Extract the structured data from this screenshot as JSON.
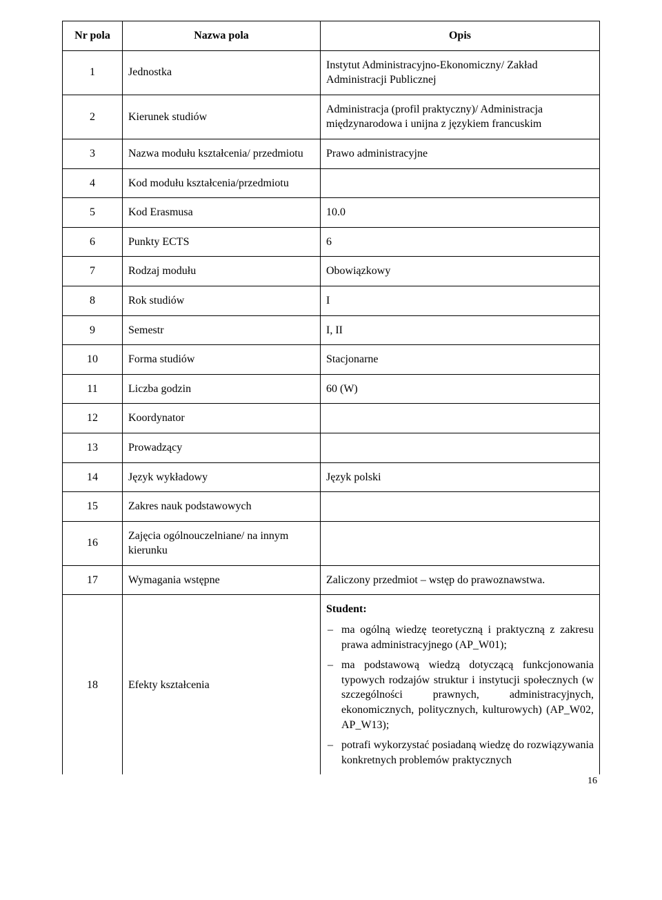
{
  "header": {
    "col1": "Nr pola",
    "col2": "Nazwa pola",
    "col3": "Opis"
  },
  "rows": {
    "r1": {
      "n": "1",
      "label": "Jednostka",
      "value": "Instytut Administracyjno-Ekonomiczny/ Zakład Administracji Publicznej"
    },
    "r2": {
      "n": "2",
      "label": "Kierunek studiów",
      "value": "Administracja (profil praktyczny)/ Administracja międzynarodowa i unijna z językiem francuskim"
    },
    "r3": {
      "n": "3",
      "label": "Nazwa modułu kształcenia/ przedmiotu",
      "value": "Prawo administracyjne"
    },
    "r4": {
      "n": "4",
      "label": "Kod modułu kształcenia/przedmiotu",
      "value": ""
    },
    "r5": {
      "n": "5",
      "label": "Kod Erasmusa",
      "value": "10.0"
    },
    "r6": {
      "n": "6",
      "label": "Punkty ECTS",
      "value": "6"
    },
    "r7": {
      "n": "7",
      "label": "Rodzaj modułu",
      "value": "Obowiązkowy"
    },
    "r8": {
      "n": "8",
      "label": "Rok studiów",
      "value": "I"
    },
    "r9": {
      "n": "9",
      "label": "Semestr",
      "value": "I, II"
    },
    "r10": {
      "n": "10",
      "label": "Forma studiów",
      "value": "Stacjonarne"
    },
    "r11": {
      "n": "11",
      "label": "Liczba godzin",
      "value": "60 (W)"
    },
    "r12": {
      "n": "12",
      "label": "Koordynator",
      "value": ""
    },
    "r13": {
      "n": "13",
      "label": "Prowadzący",
      "value": ""
    },
    "r14": {
      "n": "14",
      "label": "Język wykładowy",
      "value": "Język polski"
    },
    "r15": {
      "n": "15",
      "label": "Zakres nauk podstawowych",
      "value": ""
    },
    "r16": {
      "n": "16",
      "label": "Zajęcia ogólnouczelniane/ na innym kierunku",
      "value": ""
    },
    "r17": {
      "n": "17",
      "label": "Wymagania wstępne",
      "value": "Zaliczony przedmiot – wstęp do prawoznawstwa."
    },
    "r18": {
      "n": "18",
      "label": "Efekty kształcenia",
      "student": "Student:",
      "items": [
        "ma ogólną wiedzę teoretyczną i praktyczną z zakresu prawa administracyjnego (AP_W01);",
        "ma podstawową wiedzą dotyczącą funkcjonowania typowych rodzajów struktur i instytucji społecznych (w szczególności prawnych, administracyjnych, ekonomicznych, politycznych, kulturowych) (AP_W02, AP_W13);",
        "potrafi wykorzystać posiadaną wiedzę do rozwiązywania konkretnych problemów praktycznych"
      ]
    }
  },
  "pageNumber": "16"
}
